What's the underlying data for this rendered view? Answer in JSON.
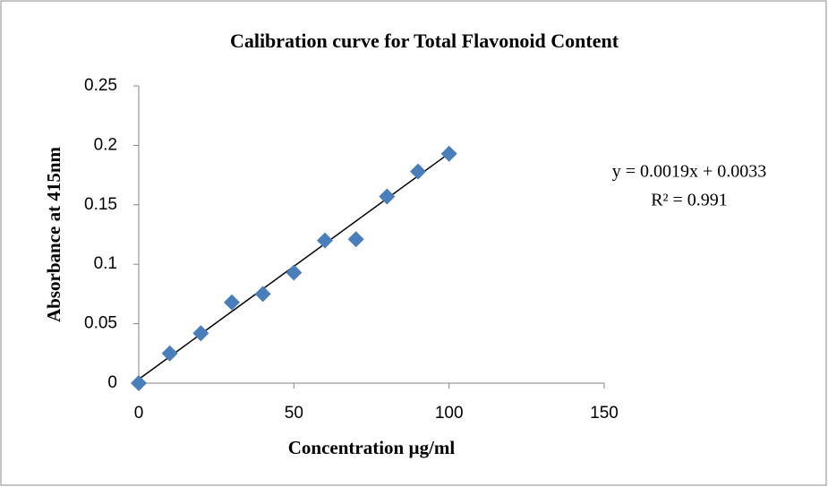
{
  "chart_data": {
    "type": "scatter",
    "title": "Calibration curve for Total Flavonoid Content",
    "x_label": "Concentration µg/ml",
    "y_label": "Absorbance at 415nm",
    "x": [
      0,
      10,
      20,
      30,
      40,
      50,
      60,
      70,
      80,
      90,
      100
    ],
    "y": [
      0,
      0.025,
      0.042,
      0.068,
      0.075,
      0.093,
      0.12,
      0.121,
      0.157,
      0.178,
      0.193
    ],
    "color": "#4a7ebb",
    "trendline": {
      "slope": 0.0019,
      "intercept": 0.0033,
      "color": "#000000"
    },
    "annotations": [
      "y = 0.0019x + 0.0033",
      "R² = 0.991"
    ],
    "xlim": [
      0,
      150
    ],
    "xticks": [
      0,
      50,
      100,
      150
    ],
    "ylim": [
      0,
      0.25
    ],
    "yticks": [
      0,
      0.05,
      0.1,
      0.15,
      0.2,
      0.25
    ],
    "grid": false
  }
}
